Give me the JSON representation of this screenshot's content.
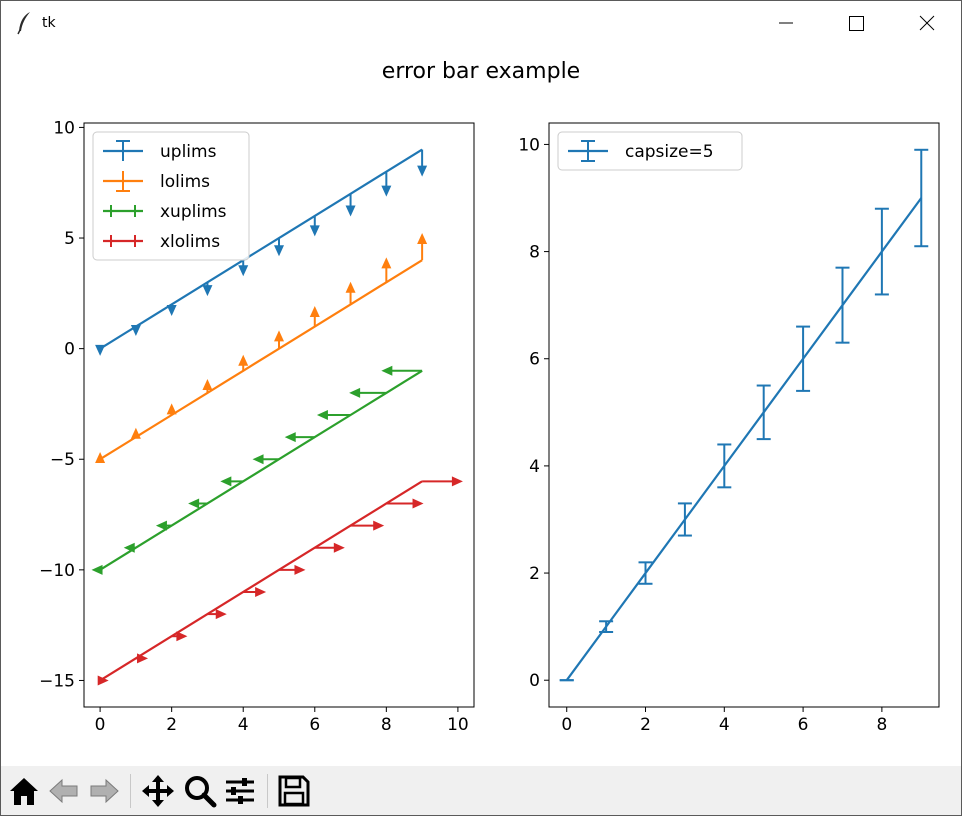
{
  "window": {
    "title": "tk",
    "icon": "feather-icon"
  },
  "window_controls": [
    "minimize-icon",
    "maximize-icon",
    "close-icon"
  ],
  "figure_title": "error bar example",
  "colors": {
    "blue": "#1f77b4",
    "orange": "#ff7f0e",
    "green": "#2ca02c",
    "red": "#d62728"
  },
  "chart_data": [
    {
      "type": "line",
      "errorbars": true,
      "xlim": [
        -0.45,
        10.45
      ],
      "ylim": [
        -16.2,
        10.2
      ],
      "xticks": [
        0,
        2,
        4,
        6,
        8,
        10
      ],
      "xtick_labels": [
        "0",
        "2",
        "4",
        "6",
        "8",
        "10"
      ],
      "yticks": [
        10,
        5,
        0,
        -5,
        -10,
        -15
      ],
      "ytick_labels": [
        "10",
        "5",
        "0",
        "−5",
        "−10",
        "−15"
      ],
      "grid": false,
      "legend": "upper left",
      "x": [
        0,
        1,
        2,
        3,
        4,
        5,
        6,
        7,
        8,
        9
      ],
      "series": [
        {
          "name": "uplims",
          "color": "#1f77b4",
          "y": [
            0,
            1,
            2,
            3,
            4,
            5,
            6,
            7,
            8,
            9
          ],
          "yerr": [
            0.1,
            0.2,
            0.3,
            0.4,
            0.5,
            0.6,
            0.7,
            0.8,
            0.9,
            1.0
          ],
          "limit": "upper"
        },
        {
          "name": "lolims",
          "color": "#ff7f0e",
          "y": [
            -5,
            -4,
            -3,
            -2,
            -1,
            0,
            1,
            2,
            3,
            4
          ],
          "yerr": [
            0.1,
            0.2,
            0.3,
            0.4,
            0.5,
            0.6,
            0.7,
            0.8,
            0.9,
            1.0
          ],
          "limit": "lower"
        },
        {
          "name": "xuplims",
          "color": "#2ca02c",
          "y": [
            -10,
            -9,
            -8,
            -7,
            -6,
            -5,
            -4,
            -3,
            -2,
            -1
          ],
          "xerr": [
            0.1,
            0.2,
            0.3,
            0.4,
            0.5,
            0.6,
            0.7,
            0.8,
            0.9,
            1.0
          ],
          "limit": "xupper"
        },
        {
          "name": "xlolims",
          "color": "#d62728",
          "y": [
            -15,
            -14,
            -13,
            -12,
            -11,
            -10,
            -9,
            -8,
            -7,
            -6
          ],
          "xerr": [
            0.1,
            0.2,
            0.3,
            0.4,
            0.5,
            0.6,
            0.7,
            0.8,
            0.9,
            1.0
          ],
          "limit": "xlower"
        }
      ]
    },
    {
      "type": "line",
      "errorbars": true,
      "xlim": [
        -0.45,
        9.45
      ],
      "ylim": [
        -0.5,
        10.4
      ],
      "xticks": [
        0,
        2,
        4,
        6,
        8
      ],
      "xtick_labels": [
        "0",
        "2",
        "4",
        "6",
        "8"
      ],
      "yticks": [
        10,
        8,
        6,
        4,
        2,
        0
      ],
      "ytick_labels": [
        "10",
        "8",
        "6",
        "4",
        "2",
        "0"
      ],
      "grid": false,
      "legend": "upper left",
      "x": [
        0,
        1,
        2,
        3,
        4,
        5,
        6,
        7,
        8,
        9
      ],
      "series": [
        {
          "name": "capsize=5",
          "color": "#1f77b4",
          "y": [
            0,
            1,
            2,
            3,
            4,
            5,
            6,
            7,
            8,
            9
          ],
          "yerr": [
            0,
            0.1,
            0.2,
            0.3,
            0.4,
            0.5,
            0.6,
            0.7,
            0.8,
            0.9
          ],
          "capsize": 5
        }
      ]
    }
  ],
  "toolbar": [
    "home-icon",
    "back-icon",
    "forward-icon",
    "pan-icon",
    "zoom-icon",
    "configure-subplots-icon",
    "save-icon"
  ]
}
